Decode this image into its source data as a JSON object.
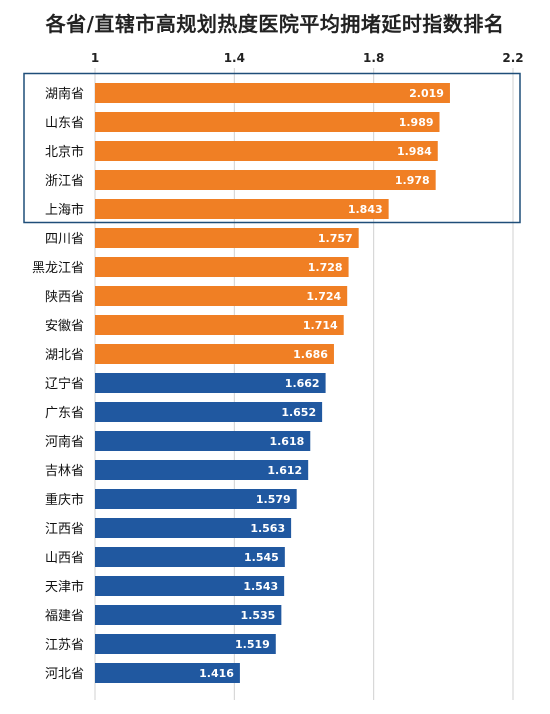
{
  "chart_data": {
    "type": "bar",
    "orientation": "horizontal",
    "title": "各省/直辖市高规划热度医院平均拥堵延时指数排名",
    "xlim": [
      1,
      2.2
    ],
    "xticks": [
      "1",
      "1.4",
      "1.8",
      "2.2"
    ],
    "xtick_values": [
      1,
      1.4,
      1.8,
      2.2
    ],
    "grid": true,
    "highlight_box": "top 5",
    "colors": {
      "orange": "#F07F24",
      "blue": "#2058A0",
      "grid": "#d0d0d0",
      "box": "#1f4e79"
    },
    "categories": [
      "湖南省",
      "山东省",
      "北京市",
      "浙江省",
      "上海市",
      "四川省",
      "黑龙江省",
      "陕西省",
      "安徽省",
      "湖北省",
      "辽宁省",
      "广东省",
      "河南省",
      "吉林省",
      "重庆市",
      "江西省",
      "山西省",
      "天津市",
      "福建省",
      "江苏省",
      "河北省"
    ],
    "values": [
      2.019,
      1.989,
      1.984,
      1.978,
      1.843,
      1.757,
      1.728,
      1.724,
      1.714,
      1.686,
      1.662,
      1.652,
      1.618,
      1.612,
      1.579,
      1.563,
      1.545,
      1.543,
      1.535,
      1.519,
      1.416
    ],
    "value_labels": [
      "2.019",
      "1.989",
      "1.984",
      "1.978",
      "1.843",
      "1.757",
      "1.728",
      "1.724",
      "1.714",
      "1.686",
      "1.662",
      "1.652",
      "1.618",
      "1.612",
      "1.579",
      "1.563",
      "1.545",
      "1.543",
      "1.535",
      "1.519",
      "1.416"
    ],
    "bar_colors": [
      "orange",
      "orange",
      "orange",
      "orange",
      "orange",
      "orange",
      "orange",
      "orange",
      "orange",
      "orange",
      "blue",
      "blue",
      "blue",
      "blue",
      "blue",
      "blue",
      "blue",
      "blue",
      "blue",
      "blue",
      "blue"
    ]
  }
}
